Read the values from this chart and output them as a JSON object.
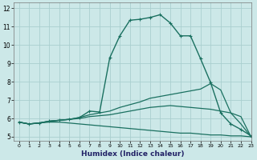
{
  "xlabel": "Humidex (Indice chaleur)",
  "ylabel": "",
  "background_color": "#cce8e8",
  "grid_color": "#aacfcf",
  "line_color": "#1a7060",
  "xlim": [
    -0.5,
    23
  ],
  "ylim": [
    4.8,
    12.3
  ],
  "xtick_labels": [
    "0",
    "1",
    "2",
    "3",
    "4",
    "5",
    "6",
    "7",
    "8",
    "9",
    "10",
    "11",
    "12",
    "13",
    "14",
    "15",
    "16",
    "17",
    "18",
    "19",
    "20",
    "21",
    "22",
    "23"
  ],
  "xtick_vals": [
    0,
    1,
    2,
    3,
    4,
    5,
    6,
    7,
    8,
    9,
    10,
    11,
    12,
    13,
    14,
    15,
    16,
    17,
    18,
    19,
    20,
    21,
    22,
    23
  ],
  "ytick_vals": [
    5,
    6,
    7,
    8,
    9,
    10,
    11,
    12
  ],
  "series": [
    {
      "x": [
        0,
        1,
        2,
        3,
        4,
        5,
        6,
        7,
        8,
        9,
        10,
        11,
        12,
        13,
        14,
        15,
        16,
        17,
        18,
        19,
        20,
        21,
        22,
        23
      ],
      "y": [
        5.8,
        5.7,
        5.75,
        5.8,
        5.8,
        5.75,
        5.7,
        5.65,
        5.6,
        5.55,
        5.5,
        5.45,
        5.4,
        5.35,
        5.3,
        5.25,
        5.2,
        5.2,
        5.15,
        5.1,
        5.1,
        5.05,
        5.05,
        5.0
      ],
      "marker": false,
      "linewidth": 0.9
    },
    {
      "x": [
        0,
        1,
        2,
        3,
        4,
        5,
        6,
        7,
        8,
        9,
        10,
        11,
        12,
        13,
        14,
        15,
        16,
        17,
        18,
        19,
        20,
        21,
        22,
        23
      ],
      "y": [
        5.8,
        5.7,
        5.75,
        5.85,
        5.9,
        5.95,
        6.0,
        6.1,
        6.15,
        6.2,
        6.3,
        6.4,
        6.5,
        6.6,
        6.65,
        6.7,
        6.65,
        6.6,
        6.55,
        6.5,
        6.4,
        6.3,
        6.1,
        5.0
      ],
      "marker": false,
      "linewidth": 0.9
    },
    {
      "x": [
        0,
        1,
        2,
        3,
        4,
        5,
        6,
        7,
        8,
        9,
        10,
        11,
        12,
        13,
        14,
        15,
        16,
        17,
        18,
        19,
        20,
        21,
        22,
        23
      ],
      "y": [
        5.8,
        5.7,
        5.75,
        5.85,
        5.9,
        5.95,
        6.05,
        6.2,
        6.3,
        6.4,
        6.6,
        6.75,
        6.9,
        7.1,
        7.2,
        7.3,
        7.4,
        7.5,
        7.6,
        7.9,
        7.55,
        6.3,
        5.7,
        5.0
      ],
      "marker": false,
      "linewidth": 0.9
    },
    {
      "x": [
        0,
        1,
        2,
        3,
        4,
        5,
        6,
        7,
        8,
        9,
        10,
        11,
        12,
        13,
        14,
        15,
        16,
        17,
        18,
        19,
        20,
        21,
        22,
        23
      ],
      "y": [
        5.8,
        5.7,
        5.75,
        5.85,
        5.9,
        5.95,
        6.05,
        6.4,
        6.35,
        9.3,
        10.5,
        11.35,
        11.4,
        11.5,
        11.65,
        11.2,
        10.5,
        10.5,
        9.25,
        7.95,
        6.3,
        5.7,
        5.4,
        5.05
      ],
      "marker": true,
      "linewidth": 1.0
    }
  ]
}
